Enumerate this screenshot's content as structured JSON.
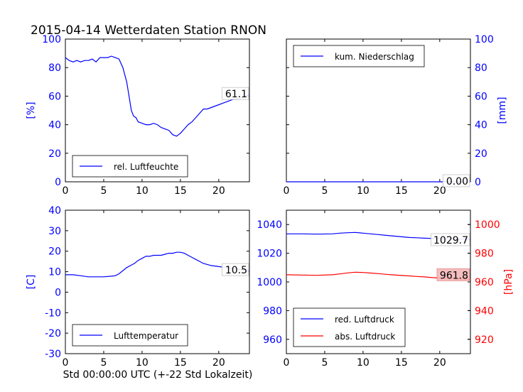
{
  "title": "2015-04-14 Wetterdaten Station RNON",
  "xlabel": "Std 00:00:00 UTC (+-22 Std Lokalzeit)",
  "colors": {
    "blue": "#0000ff",
    "red": "#ff0000",
    "axis": "#000000"
  },
  "chart_data": [
    {
      "id": "humidity",
      "type": "line",
      "title": "",
      "xlim": [
        0,
        24
      ],
      "ylim": [
        0,
        100
      ],
      "xticks": [
        "0",
        "5",
        "10",
        "15",
        "20"
      ],
      "yticks": [
        "0",
        "20",
        "40",
        "60",
        "80",
        "100"
      ],
      "ylabel": "[%]",
      "legend_position": "lower-left",
      "series": [
        {
          "name": "rel. Luftfeuchte",
          "color": "#0000ff",
          "x": [
            0,
            0.5,
            1,
            1.5,
            2,
            2.5,
            3,
            3.5,
            4,
            4.5,
            5,
            5.5,
            6,
            6.5,
            7,
            7.5,
            8,
            8.3,
            8.6,
            8.9,
            9.2,
            9.5,
            10,
            10.5,
            11,
            11.5,
            12,
            12.5,
            13,
            13.5,
            14,
            14.5,
            15,
            15.5,
            16,
            16.5,
            17,
            17.5,
            18,
            18.5,
            19,
            19.5,
            20,
            20.5,
            21,
            21.5,
            22,
            22.5,
            23,
            23.5,
            24
          ],
          "y": [
            87,
            85,
            84,
            85,
            84,
            85,
            85,
            86,
            84,
            87,
            87,
            87,
            88,
            87,
            86,
            80,
            70,
            60,
            50,
            46,
            45,
            42,
            41,
            40,
            40,
            41,
            40,
            38,
            37,
            36,
            33,
            32,
            34,
            37,
            40,
            42,
            45,
            48,
            51,
            51,
            52,
            53,
            54,
            55,
            56,
            57,
            58,
            58,
            59,
            60,
            61.1
          ]
        }
      ],
      "annotation": "61.1"
    },
    {
      "id": "precip",
      "type": "line",
      "title": "",
      "xlim": [
        0,
        24
      ],
      "ylim": [
        0,
        100
      ],
      "xticks": [
        "0",
        "5",
        "10",
        "15",
        "20"
      ],
      "yticks": [
        "0",
        "20",
        "40",
        "60",
        "80",
        "100"
      ],
      "ylabel": "[mm]",
      "yaxis_side": "right",
      "legend_position": "upper-left",
      "series": [
        {
          "name": "kum. Niederschlag",
          "color": "#0000ff",
          "x": [
            0,
            24
          ],
          "y": [
            0,
            0
          ]
        }
      ],
      "annotation": "0.00"
    },
    {
      "id": "temperature",
      "type": "line",
      "title": "",
      "xlim": [
        0,
        24
      ],
      "ylim": [
        -30,
        40
      ],
      "xticks": [
        "0",
        "5",
        "10",
        "15",
        "20"
      ],
      "yticks": [
        "-30",
        "-20",
        "-10",
        "0",
        "10",
        "20",
        "30",
        "40"
      ],
      "ylabel": "[C]",
      "legend_position": "lower-left",
      "series": [
        {
          "name": "Lufttemperatur",
          "color": "#0000ff",
          "x": [
            0,
            1,
            2,
            3,
            4,
            5,
            6,
            6.5,
            7,
            7.5,
            8,
            8.5,
            9,
            9.5,
            10,
            10.5,
            11,
            11.5,
            12,
            12.5,
            13,
            13.5,
            14,
            14.5,
            15,
            15.5,
            16,
            16.5,
            17,
            17.5,
            18,
            19,
            20,
            21,
            22,
            23,
            24
          ],
          "y": [
            8.5,
            8.5,
            8,
            7.5,
            7.5,
            7.5,
            7.8,
            8,
            9,
            10.5,
            12,
            13,
            14,
            15.5,
            16.5,
            17.5,
            17.5,
            18,
            18,
            18,
            18.5,
            19,
            19,
            19.5,
            19.5,
            19,
            18,
            17,
            16,
            15,
            14,
            13,
            12.5,
            12,
            11.5,
            11,
            10.5
          ]
        }
      ],
      "annotation": "10.5"
    },
    {
      "id": "pressure",
      "type": "line",
      "title": "",
      "xlim": [
        0,
        24
      ],
      "ylim_left": [
        950,
        1050
      ],
      "ylim_right": [
        910,
        1010
      ],
      "xticks": [
        "0",
        "5",
        "10",
        "15",
        "20"
      ],
      "yticks_left": [
        "960",
        "980",
        "1000",
        "1020",
        "1040"
      ],
      "yticks_right": [
        "920",
        "940",
        "960",
        "980",
        "1000"
      ],
      "ylabel_right": "[hPa]",
      "legend_position": "lower-left",
      "series": [
        {
          "name": "red. Luftdruck",
          "color": "#0000ff",
          "axis": "left",
          "x": [
            0,
            2,
            4,
            6,
            7,
            8,
            9,
            10,
            11,
            12,
            13,
            14,
            15,
            16,
            17,
            18,
            19,
            20,
            21,
            22,
            23,
            24
          ],
          "y": [
            1033.5,
            1033.5,
            1033.3,
            1033.5,
            1034,
            1034.3,
            1034.5,
            1034,
            1033.5,
            1033,
            1032.5,
            1032,
            1031.5,
            1031,
            1030.8,
            1030.5,
            1030.3,
            1030.2,
            1030,
            1029.9,
            1029.8,
            1029.7
          ]
        },
        {
          "name": "abs. Luftdruck",
          "color": "#ff0000",
          "axis": "right",
          "x": [
            0,
            2,
            4,
            6,
            7,
            8,
            9,
            10,
            11,
            12,
            13,
            14,
            15,
            16,
            17,
            18,
            19,
            20,
            21,
            22,
            23,
            24
          ],
          "y": [
            965,
            964.8,
            964.6,
            965,
            965.6,
            966.3,
            966.8,
            966.6,
            966.2,
            965.8,
            965.3,
            964.9,
            964.5,
            964.2,
            963.8,
            963.5,
            963,
            962.7,
            962.4,
            962.2,
            962,
            961.8
          ]
        }
      ],
      "annotation_left": "1029.7",
      "annotation_right": "961.8"
    }
  ]
}
